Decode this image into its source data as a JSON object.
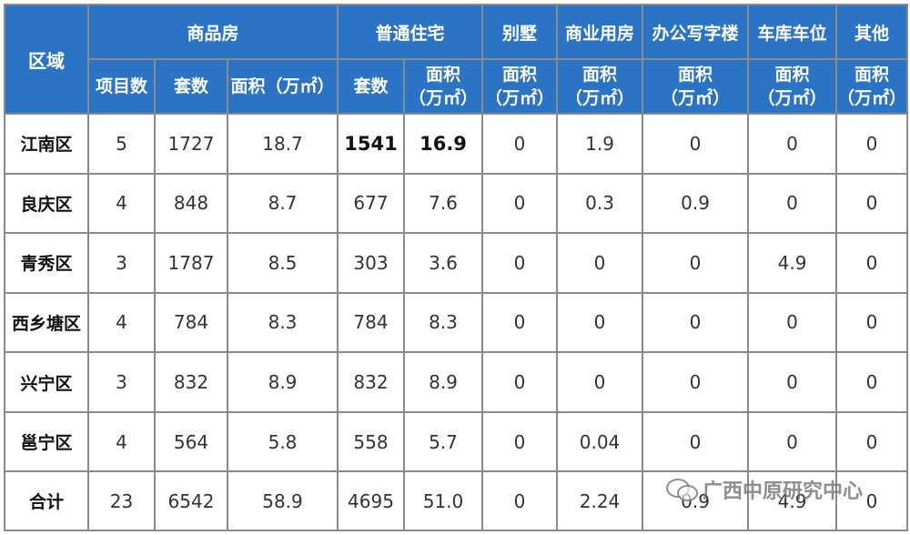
{
  "header": {
    "region": "区域",
    "groups": {
      "commercial": "商品房",
      "residential": "普通住宅",
      "villa": "别墅",
      "business": "商业用房",
      "office": "办公写字楼",
      "parking": "车库车位",
      "other": "其他"
    },
    "sub": {
      "projects": "项目数",
      "units": "套数",
      "area_wide": "面积（万㎡）",
      "units2": "套数",
      "area_line1": "面积",
      "area_line2": "（万㎡）"
    }
  },
  "rows": [
    {
      "region": "江南区",
      "projects": "5",
      "units": "1727",
      "area": "18.7",
      "res_units": "1541",
      "res_area": "16.9",
      "villa": "0",
      "business": "1.9",
      "office": "0",
      "parking": "0",
      "other": "0"
    },
    {
      "region": "良庆区",
      "projects": "4",
      "units": "848",
      "area": "8.7",
      "res_units": "677",
      "res_area": "7.6",
      "villa": "0",
      "business": "0.3",
      "office": "0.9",
      "parking": "0",
      "other": "0"
    },
    {
      "region": "青秀区",
      "projects": "3",
      "units": "1787",
      "area": "8.5",
      "res_units": "303",
      "res_area": "3.6",
      "villa": "0",
      "business": "0",
      "office": "0",
      "parking": "4.9",
      "other": "0"
    },
    {
      "region": "西乡塘区",
      "projects": "4",
      "units": "784",
      "area": "8.3",
      "res_units": "784",
      "res_area": "8.3",
      "villa": "0",
      "business": "0",
      "office": "0",
      "parking": "0",
      "other": "0"
    },
    {
      "region": "兴宁区",
      "projects": "3",
      "units": "832",
      "area": "8.9",
      "res_units": "832",
      "res_area": "8.9",
      "villa": "0",
      "business": "0",
      "office": "0",
      "parking": "0",
      "other": "0"
    },
    {
      "region": "邕宁区",
      "projects": "4",
      "units": "564",
      "area": "5.8",
      "res_units": "558",
      "res_area": "5.7",
      "villa": "0",
      "business": "0.04",
      "office": "0",
      "parking": "0",
      "other": "0"
    },
    {
      "region": "合计",
      "projects": "23",
      "units": "6542",
      "area": "58.9",
      "res_units": "4695",
      "res_area": "51.0",
      "villa": "0",
      "business": "2.24",
      "office": "0.9",
      "parking": "4.9",
      "other": "0"
    }
  ],
  "watermark": {
    "icon": "wechat-icon",
    "text": "广西中原研究中心"
  }
}
